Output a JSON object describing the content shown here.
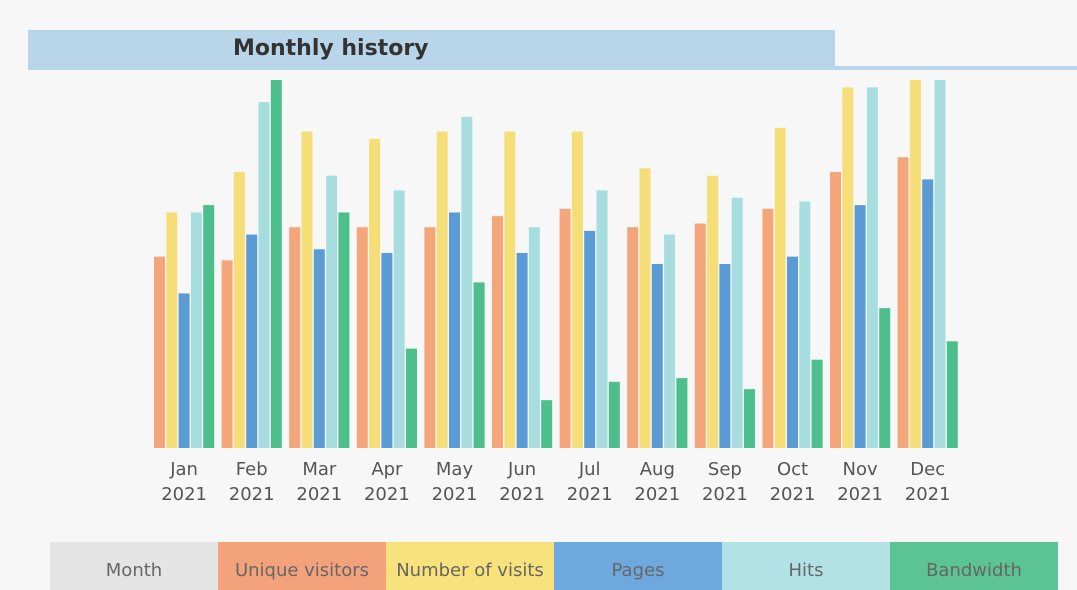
{
  "chart_data": {
    "type": "bar",
    "title": "Monthly history",
    "categories": [
      "Jan 2021",
      "Feb 2021",
      "Mar 2021",
      "Apr 2021",
      "May 2021",
      "Jun 2021",
      "Jul 2021",
      "Aug 2021",
      "Sep 2021",
      "Oct 2021",
      "Nov 2021",
      "Dec 2021"
    ],
    "x_label": "Month",
    "ylim": [
      0,
      100
    ],
    "series": [
      {
        "name": "Unique visitors",
        "color": "#f4a57a",
        "values": [
          52,
          51,
          60,
          60,
          60,
          63,
          65,
          60,
          61,
          65,
          75,
          79
        ]
      },
      {
        "name": "Number of visits",
        "color": "#f5de78",
        "values": [
          64,
          75,
          86,
          84,
          86,
          86,
          86,
          76,
          74,
          87,
          98,
          100
        ]
      },
      {
        "name": "Pages",
        "color": "#5b9bd5",
        "values": [
          42,
          58,
          54,
          53,
          64,
          53,
          59,
          50,
          50,
          52,
          66,
          73
        ]
      },
      {
        "name": "Hits",
        "color": "#a8dde0",
        "values": [
          64,
          94,
          74,
          70,
          90,
          60,
          70,
          58,
          68,
          67,
          98,
          100
        ]
      },
      {
        "name": "Bandwidth",
        "color": "#4cbf8c",
        "values": [
          66,
          100,
          64,
          27,
          45,
          13,
          18,
          19,
          16,
          24,
          38,
          29
        ]
      }
    ]
  }
}
